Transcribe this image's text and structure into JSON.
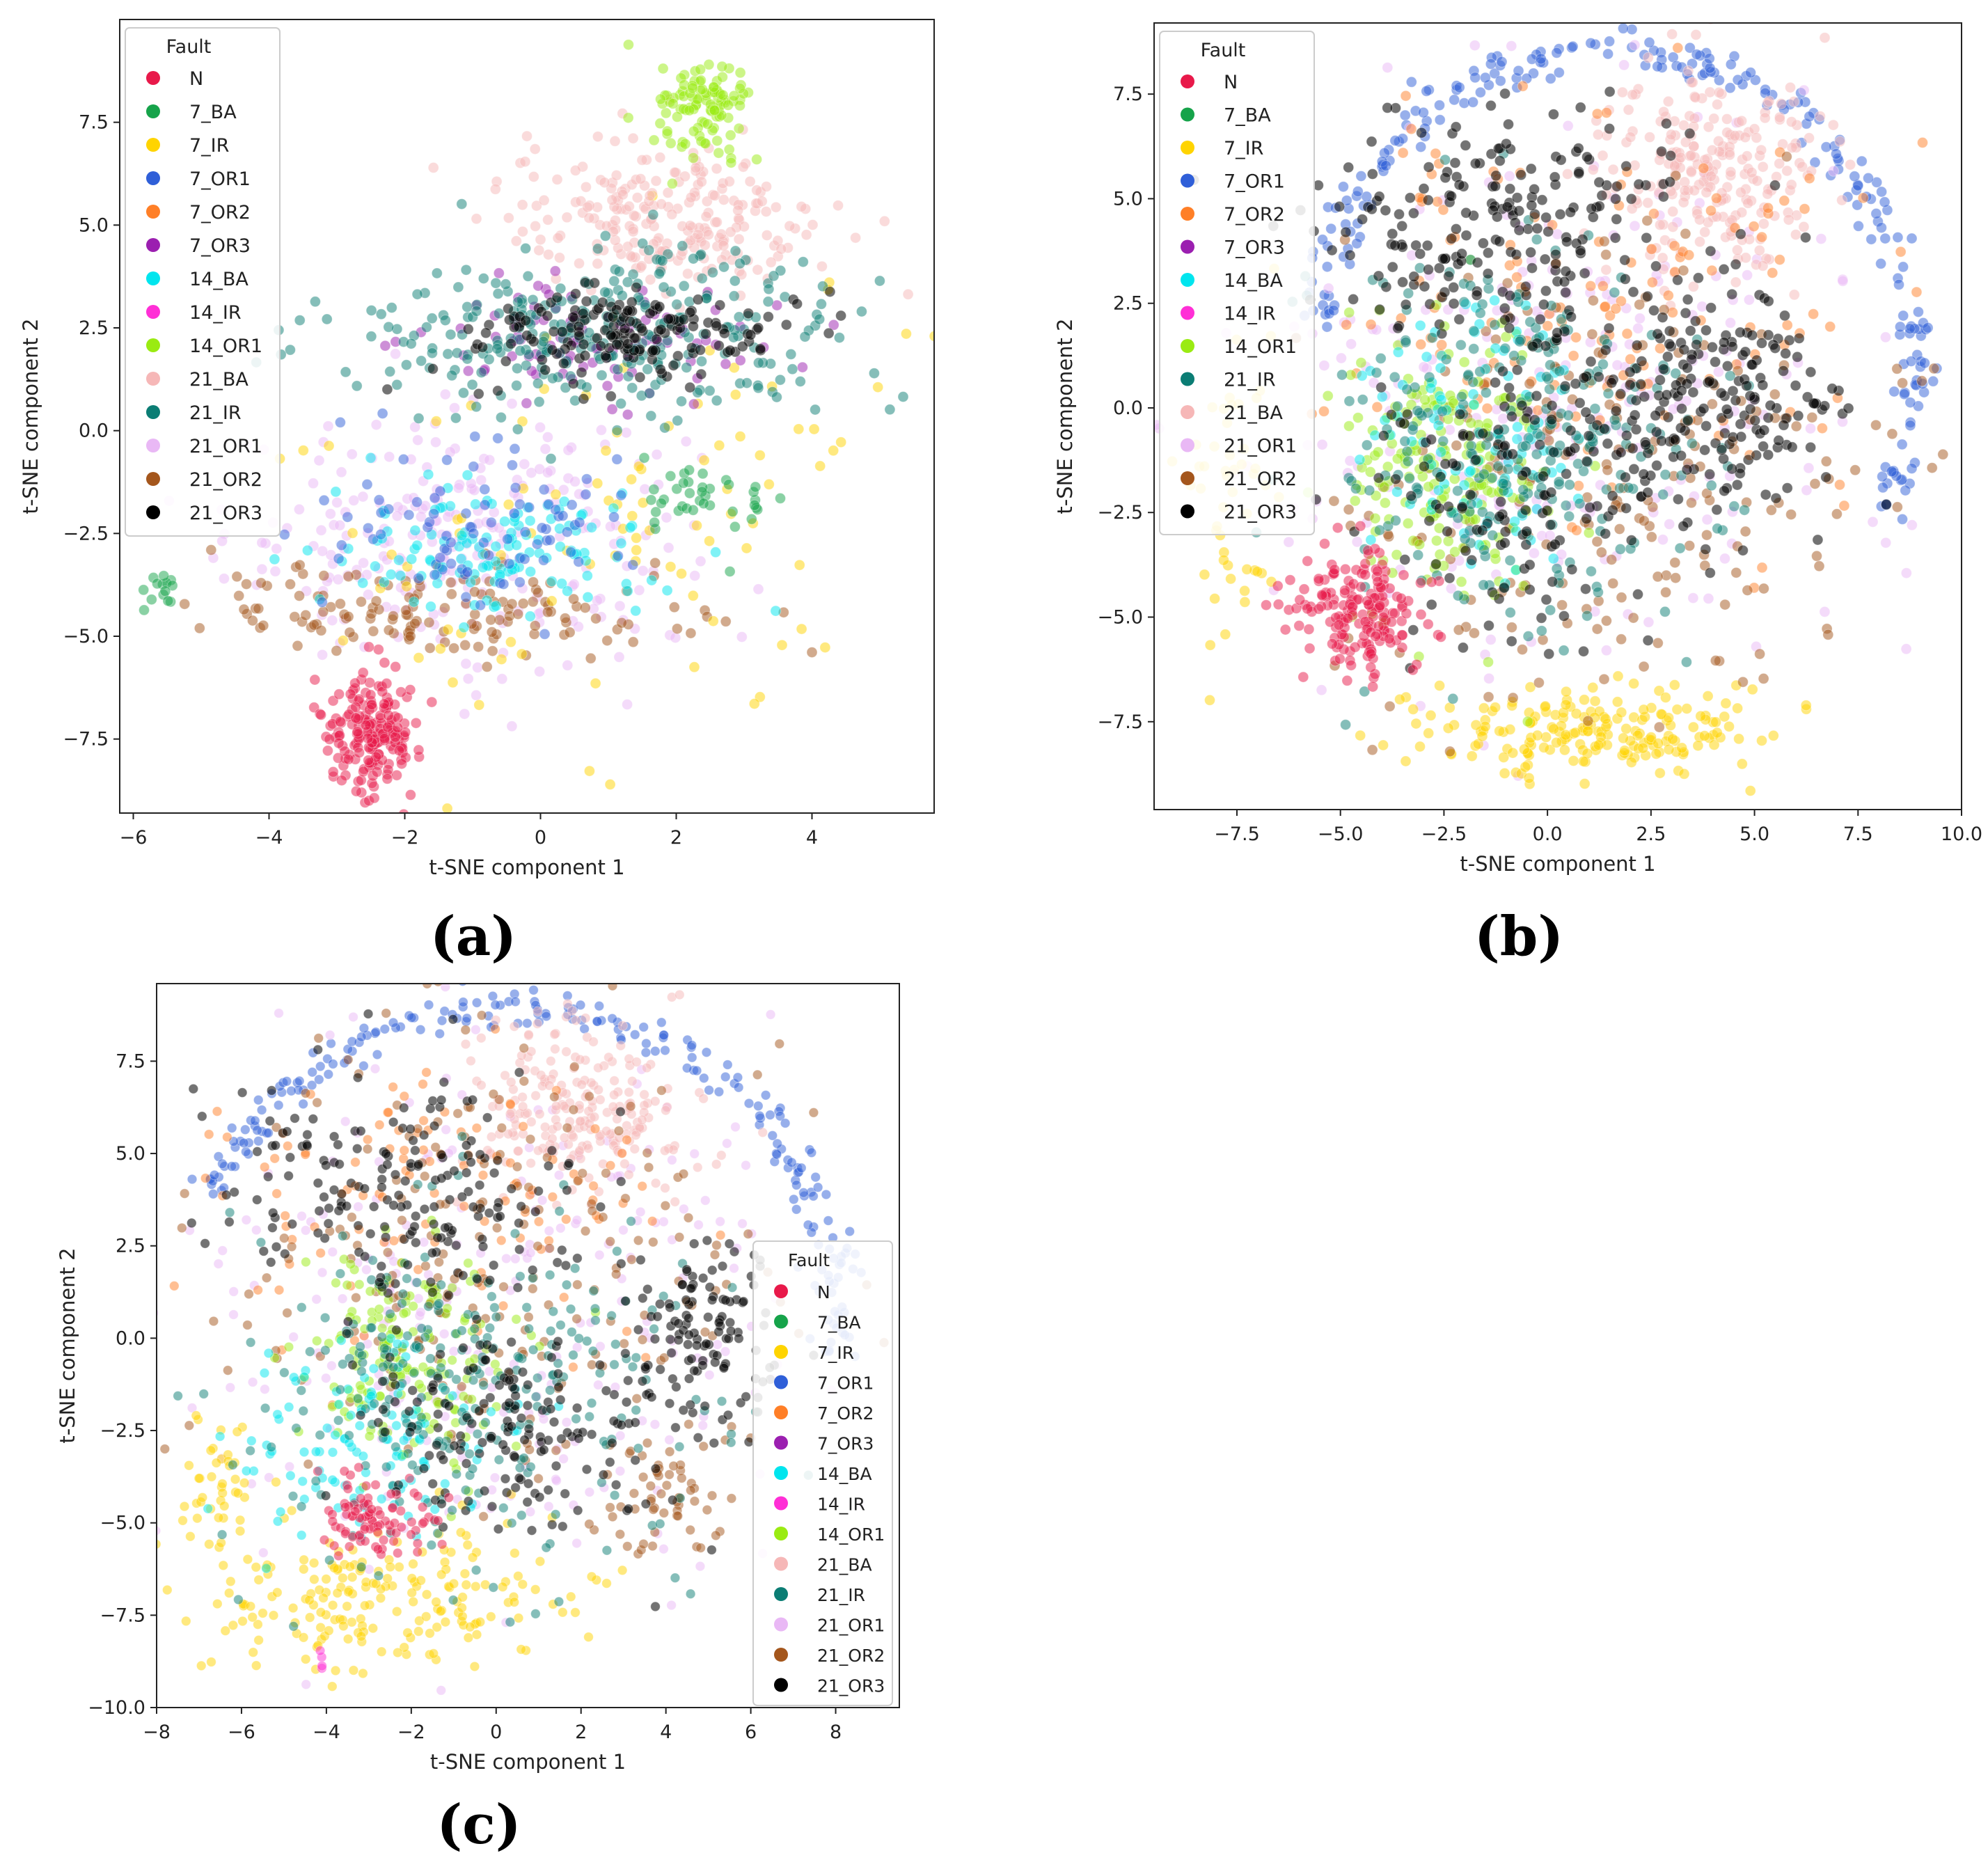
{
  "figure": {
    "panel_labels": [
      "(a)",
      "(b)",
      "(c)"
    ]
  },
  "palette": {
    "N": "#e8194a",
    "7_BA": "#16a34a",
    "7_IR": "#ffd400",
    "7_OR1": "#2f5fd8",
    "7_OR2": "#ff7f27",
    "7_OR3": "#9b1fb0",
    "14_BA": "#00e5ee",
    "14_IR": "#ff2fd6",
    "14_OR1": "#9aeb12",
    "21_BA": "#f6b7b7",
    "21_IR": "#0b7d74",
    "21_OR1": "#e9b8f5",
    "21_OR2": "#a4561c",
    "21_OR3": "#000000"
  },
  "chart_data": [
    {
      "type": "scatter",
      "panel": "(a)",
      "title": "",
      "xlabel": "t-SNE component 1",
      "ylabel": "t-SNE component 2",
      "xlim": [
        -6.2,
        5.8
      ],
      "ylim": [
        -9.3,
        10.0
      ],
      "xticks": [
        -6,
        -4,
        -2,
        0,
        2,
        4
      ],
      "xtick_labels": [
        "−6",
        "−4",
        "−2",
        "0",
        "2",
        "4"
      ],
      "yticks": [
        -7.5,
        -5.0,
        -2.5,
        0.0,
        2.5,
        5.0,
        7.5
      ],
      "ytick_labels": [
        "−7.5",
        "−5.0",
        "−2.5",
        "0.0",
        "2.5",
        "5.0",
        "7.5"
      ],
      "legend": {
        "title": "Fault",
        "location": "upper left",
        "entries": [
          "N",
          "7_BA",
          "7_IR",
          "7_OR1",
          "7_OR2",
          "7_OR3",
          "14_BA",
          "14_IR",
          "14_OR1",
          "21_BA",
          "21_IR",
          "21_OR1",
          "21_OR2",
          "21_OR3"
        ]
      },
      "clusters": [
        {
          "label": "21_OR1",
          "cx": -1.2,
          "cy": -2.6,
          "sx": 1.7,
          "sy": 1.5,
          "n": 260
        },
        {
          "label": "21_OR2",
          "cx": -1.4,
          "cy": -4.4,
          "sx": 1.8,
          "sy": 0.55,
          "n": 150
        },
        {
          "label": "7_IR",
          "cx": 1.2,
          "cy": -2.0,
          "sx": 2.4,
          "sy": 3.2,
          "n": 100
        },
        {
          "label": "21_BA",
          "cx": 1.9,
          "cy": 5.2,
          "sx": 1.2,
          "sy": 0.9,
          "n": 240
        },
        {
          "label": "14_OR1",
          "cx": 2.4,
          "cy": 7.8,
          "sx": 0.35,
          "sy": 0.6,
          "n": 110
        },
        {
          "label": "14_BA",
          "cx": -0.6,
          "cy": -3.0,
          "sx": 1.2,
          "sy": 0.8,
          "n": 130
        },
        {
          "label": "7_OR1",
          "cx": -0.9,
          "cy": -2.2,
          "sx": 1.2,
          "sy": 1.0,
          "n": 90
        },
        {
          "label": "7_OR3",
          "cx": 0.9,
          "cy": 2.3,
          "sx": 1.4,
          "sy": 0.8,
          "n": 90
        },
        {
          "label": "21_IR",
          "cx": 0.9,
          "cy": 2.4,
          "sx": 1.9,
          "sy": 0.95,
          "n": 300
        },
        {
          "label": "21_OR3",
          "cx": 1.3,
          "cy": 2.3,
          "sx": 1.2,
          "sy": 0.55,
          "n": 170
        },
        {
          "label": "7_BA",
          "cx": 2.5,
          "cy": -1.6,
          "sx": 0.5,
          "sy": 0.6,
          "n": 40
        },
        {
          "label": "7_BA",
          "cx": -5.6,
          "cy": -3.8,
          "sx": 0.12,
          "sy": 0.35,
          "n": 14
        },
        {
          "label": "N",
          "cx": -2.5,
          "cy": -7.3,
          "sx": 0.35,
          "sy": 0.7,
          "n": 190
        }
      ]
    },
    {
      "type": "scatter",
      "panel": "(b)",
      "title": "",
      "xlabel": "t-SNE component 1",
      "ylabel": "t-SNE component 2",
      "xlim": [
        -9.5,
        10.0
      ],
      "ylim": [
        -9.6,
        9.2
      ],
      "xticks": [
        -7.5,
        -5.0,
        -2.5,
        0.0,
        2.5,
        5.0,
        7.5,
        10.0
      ],
      "xtick_labels": [
        "−7.5",
        "−5.0",
        "−2.5",
        "0.0",
        "2.5",
        "5.0",
        "7.5",
        "10.0"
      ],
      "yticks": [
        -7.5,
        -5.0,
        -2.5,
        0.0,
        2.5,
        5.0,
        7.5
      ],
      "ytick_labels": [
        "−7.5",
        "−5.0",
        "−2.5",
        "0.0",
        "2.5",
        "5.0",
        "7.5"
      ],
      "legend": {
        "title": "Fault",
        "location": "upper left",
        "entries": [
          "N",
          "7_BA",
          "7_IR",
          "7_OR1",
          "7_OR2",
          "7_OR3",
          "14_BA",
          "14_IR",
          "14_OR1",
          "21_IR",
          "21_BA",
          "21_OR1",
          "21_OR2",
          "21_OR3"
        ]
      },
      "clusters": [
        {
          "label": "7_OR1",
          "ring": true,
          "cx": 1.6,
          "cy": 0.8,
          "rx": 7.3,
          "ry": 7.8,
          "a0": -0.45,
          "a1": 3.0,
          "n": 240
        },
        {
          "label": "21_OR1",
          "cx": 0.6,
          "cy": 0.3,
          "sx": 3.6,
          "sy": 3.4,
          "n": 260
        },
        {
          "label": "7_IR",
          "cx": 1.0,
          "cy": -7.7,
          "sx": 2.2,
          "sy": 0.5,
          "n": 200
        },
        {
          "label": "7_IR",
          "cx": -7.6,
          "cy": -2.0,
          "sx": 0.5,
          "sy": 2.0,
          "n": 50
        },
        {
          "label": "21_BA",
          "cx": 3.8,
          "cy": 5.8,
          "sx": 1.3,
          "sy": 1.2,
          "n": 240
        },
        {
          "label": "7_OR2",
          "cx": 0.8,
          "cy": 2.5,
          "sx": 3.6,
          "sy": 2.8,
          "n": 150
        },
        {
          "label": "21_OR2",
          "cx": 1.5,
          "cy": -2.0,
          "sx": 3.2,
          "sy": 2.8,
          "n": 220
        },
        {
          "label": "14_OR1",
          "cx": -2.6,
          "cy": -1.5,
          "sx": 1.2,
          "sy": 1.6,
          "n": 190
        },
        {
          "label": "14_BA",
          "cx": -1.7,
          "cy": -0.9,
          "sx": 1.6,
          "sy": 1.6,
          "n": 100
        },
        {
          "label": "21_IR",
          "cx": -0.8,
          "cy": -0.7,
          "sx": 2.4,
          "sy": 2.3,
          "n": 280
        },
        {
          "label": "21_OR3",
          "cx": -1.2,
          "cy": 4.5,
          "sx": 2.4,
          "sy": 1.3,
          "n": 210
        },
        {
          "label": "21_OR3",
          "cx": 4.0,
          "cy": 0.3,
          "sx": 1.5,
          "sy": 1.4,
          "n": 190
        },
        {
          "label": "21_OR3",
          "cx": -0.6,
          "cy": -1.8,
          "sx": 2.0,
          "sy": 2.0,
          "n": 160
        },
        {
          "label": "N",
          "cx": -4.5,
          "cy": -4.9,
          "sx": 0.8,
          "sy": 0.7,
          "n": 180
        }
      ]
    },
    {
      "type": "scatter",
      "panel": "(c)",
      "title": "",
      "xlabel": "t-SNE component 1",
      "ylabel": "t-SNE component 2",
      "xlim": [
        -8.0,
        9.5
      ],
      "ylim": [
        -10.0,
        9.6
      ],
      "xticks": [
        -8,
        -6,
        -4,
        -2,
        0,
        2,
        4,
        6,
        8
      ],
      "xtick_labels": [
        "−8",
        "−6",
        "−4",
        "−2",
        "0",
        "2",
        "4",
        "6",
        "8"
      ],
      "yticks": [
        -10.0,
        -7.5,
        -5.0,
        -2.5,
        0.0,
        2.5,
        5.0,
        7.5
      ],
      "ytick_labels": [
        "−10.0",
        "−7.5",
        "−5.0",
        "−2.5",
        "0.0",
        "2.5",
        "5.0",
        "7.5"
      ],
      "legend": {
        "title": "Fault",
        "location": "center right",
        "entries": [
          "N",
          "7_BA",
          "7_IR",
          "7_OR1",
          "7_OR2",
          "7_OR3",
          "14_BA",
          "14_IR",
          "14_OR1",
          "21_BA",
          "21_IR",
          "21_OR1",
          "21_OR2",
          "21_OR3"
        ]
      },
      "clusters": [
        {
          "label": "7_OR1",
          "ring": true,
          "cx": 0.4,
          "cy": 1.0,
          "rx": 7.6,
          "ry": 7.9,
          "a0": -0.2,
          "a1": 2.8,
          "n": 230
        },
        {
          "label": "21_OR1",
          "cx": 0.3,
          "cy": 0.5,
          "sx": 3.8,
          "sy": 3.5,
          "n": 260
        },
        {
          "label": "7_IR",
          "cx": -2.9,
          "cy": -6.9,
          "sx": 2.2,
          "sy": 1.0,
          "n": 210
        },
        {
          "label": "7_IR",
          "cx": -6.6,
          "cy": -3.8,
          "sx": 0.4,
          "sy": 0.9,
          "n": 40
        },
        {
          "label": "21_BA",
          "cx": 2.0,
          "cy": 6.1,
          "sx": 1.3,
          "sy": 1.2,
          "n": 220
        },
        {
          "label": "7_OR2",
          "cx": -1.2,
          "cy": 3.5,
          "sx": 3.0,
          "sy": 2.0,
          "n": 120
        },
        {
          "label": "21_OR2",
          "cx": -0.2,
          "cy": 1.5,
          "sx": 3.6,
          "sy": 3.0,
          "n": 220
        },
        {
          "label": "21_OR2",
          "cx": 4.0,
          "cy": -4.5,
          "sx": 0.8,
          "sy": 1.0,
          "n": 60
        },
        {
          "label": "14_OR1",
          "cx": -2.2,
          "cy": -0.5,
          "sx": 1.4,
          "sy": 1.5,
          "n": 160
        },
        {
          "label": "14_BA",
          "cx": -3.0,
          "cy": -2.8,
          "sx": 1.5,
          "sy": 1.3,
          "n": 120
        },
        {
          "label": "21_IR",
          "cx": -0.7,
          "cy": -1.5,
          "sx": 2.6,
          "sy": 2.3,
          "n": 280
        },
        {
          "label": "21_OR3",
          "cx": -2.2,
          "cy": 4.0,
          "sx": 2.0,
          "sy": 1.5,
          "n": 190
        },
        {
          "label": "21_OR3",
          "cx": 5.0,
          "cy": 0.2,
          "sx": 0.9,
          "sy": 1.3,
          "n": 120
        },
        {
          "label": "21_OR3",
          "cx": 0.2,
          "cy": -2.5,
          "sx": 1.8,
          "sy": 1.5,
          "n": 160
        },
        {
          "label": "N",
          "cx": -2.8,
          "cy": -4.8,
          "sx": 0.7,
          "sy": 0.5,
          "n": 90
        },
        {
          "label": "14_IR",
          "cx": -4.1,
          "cy": -8.8,
          "sx": 0.08,
          "sy": 0.25,
          "n": 4
        }
      ]
    }
  ]
}
